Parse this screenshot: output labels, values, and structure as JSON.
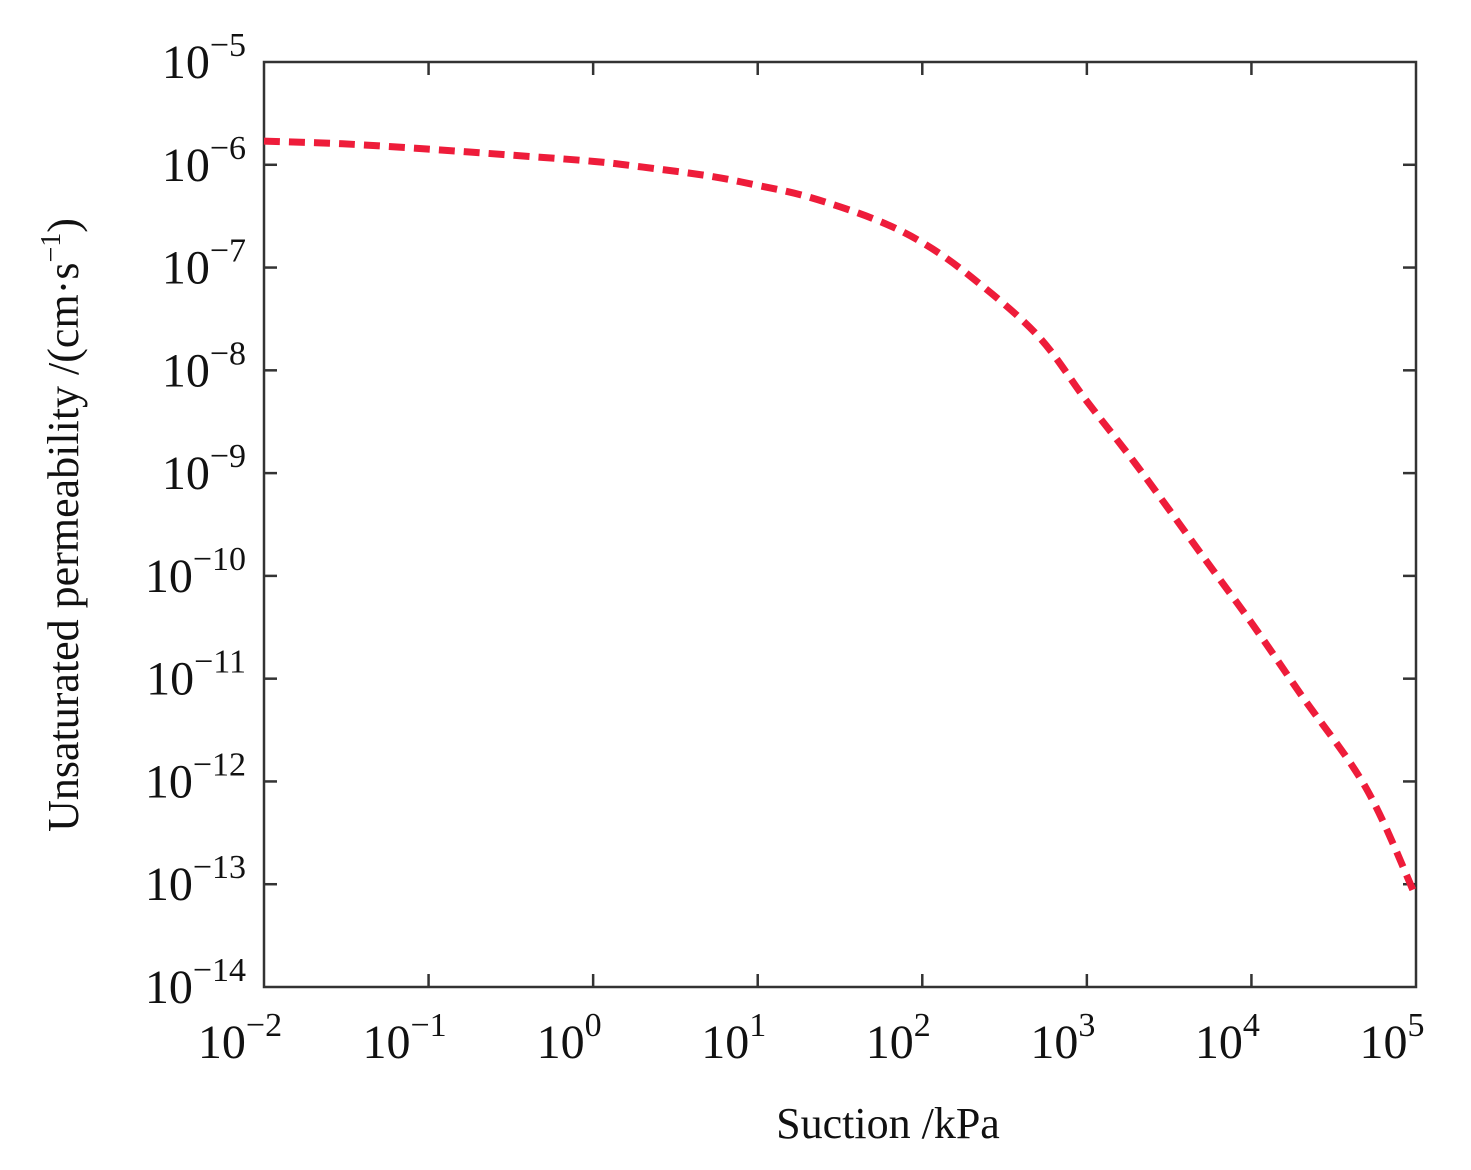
{
  "chart_data": {
    "type": "line",
    "title": "",
    "xlabel": "Suction /kPa",
    "ylabel": "Unsaturated permeability /(cm·s⁻¹)",
    "ylabel_parts": {
      "main": "Unsaturated permeability /(cm·s",
      "superscript": "−1",
      "close": ")"
    },
    "x_scale": "log",
    "y_scale": "log",
    "xlim": [
      0.01,
      100000
    ],
    "ylim": [
      1e-14,
      1e-05
    ],
    "x_tick_labels": [
      {
        "base": "10",
        "exp": "−2"
      },
      {
        "base": "10",
        "exp": "−1"
      },
      {
        "base": "10",
        "exp": "0"
      },
      {
        "base": "10",
        "exp": "1"
      },
      {
        "base": "10",
        "exp": "2"
      },
      {
        "base": "10",
        "exp": "3"
      },
      {
        "base": "10",
        "exp": "4"
      },
      {
        "base": "10",
        "exp": "5"
      }
    ],
    "y_tick_labels": [
      {
        "base": "10",
        "exp": "−5"
      },
      {
        "base": "10",
        "exp": "−6"
      },
      {
        "base": "10",
        "exp": "−7"
      },
      {
        "base": "10",
        "exp": "−8"
      },
      {
        "base": "10",
        "exp": "−9"
      },
      {
        "base": "10",
        "exp": "−10"
      },
      {
        "base": "10",
        "exp": "−11"
      },
      {
        "base": "10",
        "exp": "−12"
      },
      {
        "base": "10",
        "exp": "−13"
      },
      {
        "base": "10",
        "exp": "−14"
      }
    ],
    "grid": false,
    "legend": "none",
    "series": [
      {
        "style": "dashed",
        "color": "#ee1c3a",
        "x": [
          0.01,
          0.03,
          0.1,
          0.3,
          1,
          2,
          5,
          10,
          20,
          50,
          100,
          200,
          500,
          1000,
          2000,
          5000,
          10000,
          20000,
          50000,
          100000
        ],
        "y": [
          1.7e-06,
          1.6e-06,
          1.42e-06,
          1.25e-06,
          1.08e-06,
          9.5e-07,
          7.8e-07,
          6.3e-07,
          4.9e-07,
          3e-07,
          1.75e-07,
          8e-08,
          2.2e-08,
          5e-09,
          1.2e-09,
          1.6e-10,
          3.5e-11,
          7e-12,
          8.5e-13,
          7.5e-14
        ]
      }
    ]
  }
}
